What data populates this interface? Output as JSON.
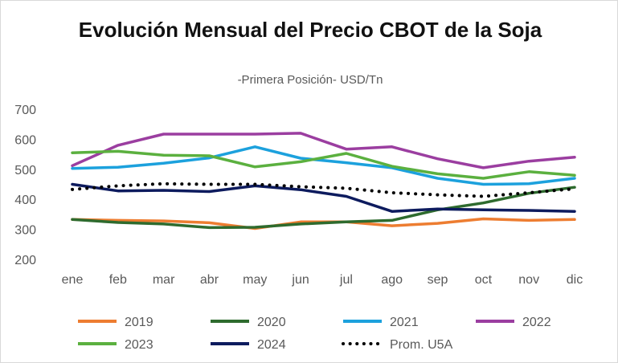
{
  "chart_data": {
    "type": "line",
    "title": "Evolución Mensual del Precio CBOT de la Soja",
    "subtitle": "-Primera Posición- USD/Tn",
    "categories": [
      "ene",
      "feb",
      "mar",
      "abr",
      "may",
      "jun",
      "jul",
      "ago",
      "sep",
      "oct",
      "nov",
      "dic"
    ],
    "ylim": [
      200,
      700
    ],
    "yticks": [
      200,
      300,
      400,
      500,
      600,
      700
    ],
    "grid": false,
    "legend_position": "bottom",
    "series": [
      {
        "name": "2019",
        "color": "#ED7D31",
        "style": "solid",
        "values": [
          333,
          330,
          328,
          322,
          303,
          325,
          325,
          312,
          320,
          335,
          330,
          333
        ]
      },
      {
        "name": "2020",
        "color": "#2E6B2E",
        "style": "solid",
        "values": [
          333,
          323,
          318,
          306,
          307,
          318,
          325,
          330,
          365,
          388,
          420,
          440
        ]
      },
      {
        "name": "2021",
        "color": "#1CA1DD",
        "style": "solid",
        "values": [
          503,
          507,
          520,
          538,
          575,
          537,
          522,
          505,
          470,
          450,
          452,
          470
        ]
      },
      {
        "name": "2022",
        "color": "#9B3EA0",
        "style": "solid",
        "values": [
          512,
          580,
          617,
          617,
          617,
          620,
          567,
          575,
          535,
          505,
          527,
          540
        ]
      },
      {
        "name": "2023",
        "color": "#5BB03F",
        "style": "solid",
        "values": [
          555,
          560,
          547,
          545,
          508,
          525,
          553,
          510,
          485,
          470,
          492,
          480
        ]
      },
      {
        "name": "2024",
        "color": "#0D1B5E",
        "style": "solid",
        "values": [
          450,
          428,
          430,
          426,
          445,
          432,
          410,
          360,
          368,
          365,
          363,
          360
        ]
      },
      {
        "name": "Prom. U5A",
        "color": "#000000",
        "style": "dotted",
        "values": [
          433,
          445,
          452,
          450,
          450,
          442,
          437,
          422,
          415,
          410,
          422,
          435
        ]
      }
    ]
  }
}
